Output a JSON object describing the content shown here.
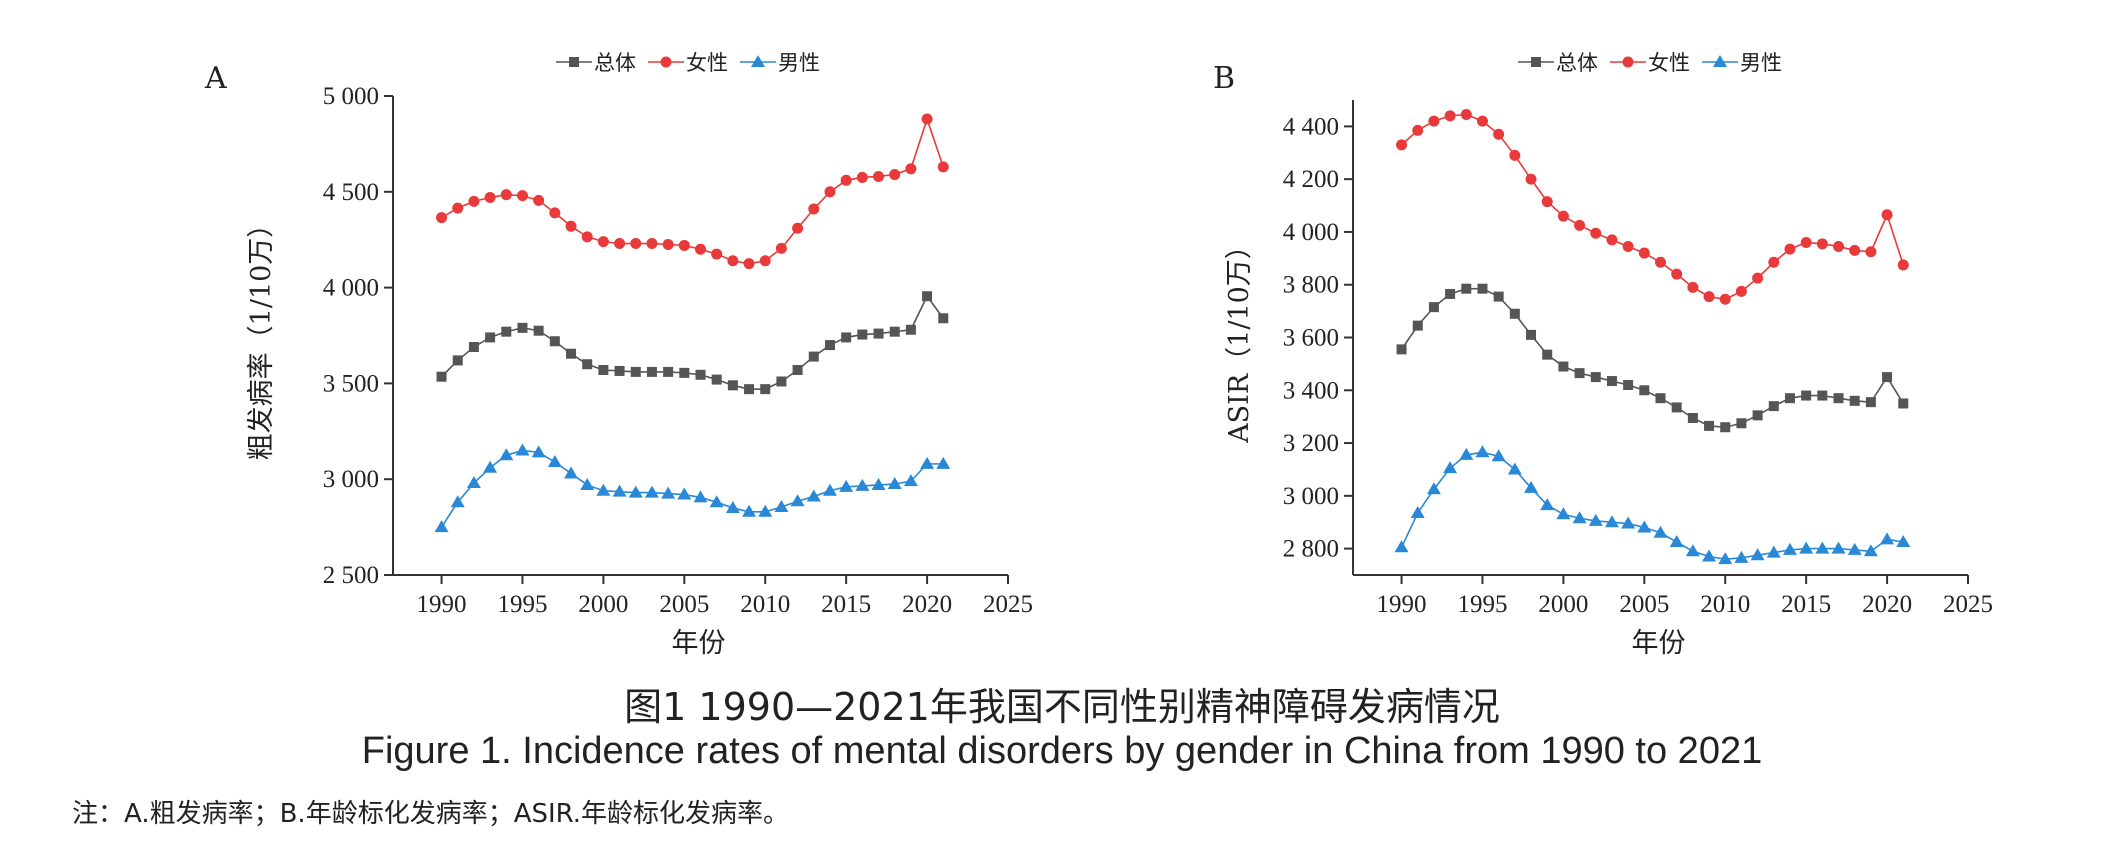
{
  "figure": {
    "title_cn": "图1  1990—2021年我国不同性别精神障碍发病情况",
    "title_en": "Figure 1. Incidence rates of mental disorders by gender in China from 1990 to 2021",
    "note": "注：A.粗发病率；B.年龄标化发病率；ASIR.年龄标化发病率。"
  },
  "chart_data": [
    {
      "panel": "A",
      "type": "line",
      "xlabel": "年份",
      "ylabel": "粗发病率（1/10万）",
      "xlim": [
        1987,
        2025
      ],
      "ylim": [
        2500,
        5000
      ],
      "xticks": [
        1990,
        1995,
        2000,
        2005,
        2010,
        2015,
        2020,
        2025
      ],
      "xtick_labels": [
        "1990",
        "1995",
        "2000",
        "2005",
        "2010",
        "2015",
        "2020",
        "2025"
      ],
      "yticks": [
        2500,
        3000,
        3500,
        4000,
        4500,
        5000
      ],
      "ytick_labels": [
        "2 500",
        "3 000",
        "3 500",
        "4 000",
        "4 500",
        "5 000"
      ],
      "legend_position": "top-center",
      "x": [
        1990,
        1991,
        1992,
        1993,
        1994,
        1995,
        1996,
        1997,
        1998,
        1999,
        2000,
        2001,
        2002,
        2003,
        2004,
        2005,
        2006,
        2007,
        2008,
        2009,
        2010,
        2011,
        2012,
        2013,
        2014,
        2015,
        2016,
        2017,
        2018,
        2019,
        2020,
        2021
      ],
      "series": [
        {
          "name": "总体",
          "color": "#555555",
          "marker": "square",
          "values": [
            3535,
            3620,
            3690,
            3740,
            3770,
            3790,
            3775,
            3720,
            3655,
            3600,
            3570,
            3565,
            3560,
            3560,
            3560,
            3555,
            3545,
            3520,
            3490,
            3470,
            3470,
            3510,
            3570,
            3640,
            3700,
            3740,
            3755,
            3760,
            3770,
            3780,
            3955,
            3840
          ]
        },
        {
          "name": "女性",
          "color": "#e8393b",
          "marker": "circle",
          "values": [
            4365,
            4415,
            4450,
            4470,
            4485,
            4480,
            4455,
            4390,
            4320,
            4265,
            4240,
            4230,
            4230,
            4230,
            4225,
            4220,
            4200,
            4175,
            4140,
            4125,
            4140,
            4205,
            4310,
            4410,
            4500,
            4560,
            4575,
            4580,
            4590,
            4620,
            4880,
            4630
          ]
        },
        {
          "name": "男性",
          "color": "#2a89d6",
          "marker": "triangle",
          "values": [
            2750,
            2880,
            2980,
            3060,
            3125,
            3150,
            3140,
            3090,
            3030,
            2970,
            2940,
            2935,
            2930,
            2930,
            2925,
            2920,
            2905,
            2880,
            2850,
            2830,
            2830,
            2855,
            2885,
            2910,
            2940,
            2960,
            2965,
            2970,
            2975,
            2990,
            3080,
            3080
          ]
        }
      ]
    },
    {
      "panel": "B",
      "type": "line",
      "xlabel": "年份",
      "ylabel": "ASIR（1/10万）",
      "xlim": [
        1987,
        2025
      ],
      "ylim": [
        2700,
        4500
      ],
      "xticks": [
        1990,
        1995,
        2000,
        2005,
        2010,
        2015,
        2020,
        2025
      ],
      "xtick_labels": [
        "1990",
        "1995",
        "2000",
        "2005",
        "2010",
        "2015",
        "2020",
        "2025"
      ],
      "yticks": [
        2800,
        3000,
        3200,
        3400,
        3600,
        3800,
        4000,
        4200,
        4400
      ],
      "ytick_labels": [
        "2 800",
        "3 000",
        "3 200",
        "3 400",
        "3 600",
        "3 800",
        "4 000",
        "4 200",
        "4 400"
      ],
      "legend_position": "top-center",
      "x": [
        1990,
        1991,
        1992,
        1993,
        1994,
        1995,
        1996,
        1997,
        1998,
        1999,
        2000,
        2001,
        2002,
        2003,
        2004,
        2005,
        2006,
        2007,
        2008,
        2009,
        2010,
        2011,
        2012,
        2013,
        2014,
        2015,
        2016,
        2017,
        2018,
        2019,
        2020,
        2021
      ],
      "series": [
        {
          "name": "总体",
          "color": "#555555",
          "marker": "square",
          "values": [
            3555,
            3645,
            3715,
            3765,
            3785,
            3785,
            3755,
            3690,
            3610,
            3535,
            3490,
            3465,
            3450,
            3435,
            3420,
            3400,
            3370,
            3335,
            3295,
            3265,
            3260,
            3275,
            3305,
            3340,
            3370,
            3380,
            3380,
            3370,
            3360,
            3355,
            3450,
            3350
          ]
        },
        {
          "name": "女性",
          "color": "#e8393b",
          "marker": "circle",
          "values": [
            4330,
            4385,
            4420,
            4440,
            4445,
            4420,
            4370,
            4290,
            4200,
            4115,
            4060,
            4025,
            3995,
            3970,
            3945,
            3920,
            3885,
            3840,
            3790,
            3755,
            3745,
            3775,
            3825,
            3885,
            3935,
            3960,
            3955,
            3945,
            3930,
            3925,
            4065,
            3875
          ]
        },
        {
          "name": "男性",
          "color": "#2a89d6",
          "marker": "triangle",
          "values": [
            2805,
            2935,
            3025,
            3105,
            3155,
            3165,
            3150,
            3100,
            3030,
            2965,
            2930,
            2915,
            2905,
            2900,
            2895,
            2880,
            2860,
            2825,
            2790,
            2770,
            2760,
            2765,
            2775,
            2785,
            2795,
            2800,
            2800,
            2800,
            2795,
            2790,
            2835,
            2825
          ]
        }
      ]
    }
  ]
}
